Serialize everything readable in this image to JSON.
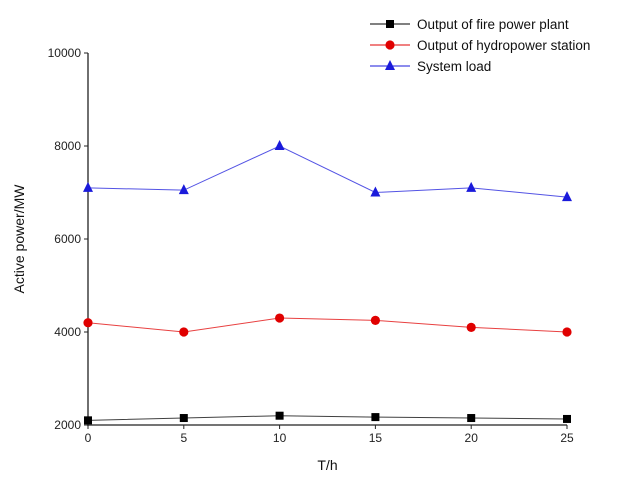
{
  "chart_data": {
    "type": "line",
    "title": "",
    "xlabel": "T/h",
    "ylabel": "Active power/MW",
    "x": [
      0,
      5,
      10,
      15,
      20,
      25
    ],
    "xlim": [
      0,
      25
    ],
    "ylim": [
      2000,
      10000
    ],
    "xticks": [
      0,
      5,
      10,
      15,
      20,
      25
    ],
    "yticks": [
      2000,
      4000,
      6000,
      8000,
      10000
    ],
    "grid": false,
    "legend_position": "top-right",
    "series": [
      {
        "name": "Output of fire power plant",
        "marker": "square",
        "color": "#000000",
        "values": [
          2100,
          2150,
          2200,
          2170,
          2150,
          2130
        ]
      },
      {
        "name": "Output of hydropower station",
        "marker": "circle",
        "color": "#e00000",
        "values": [
          4200,
          4000,
          4300,
          4250,
          4100,
          4000
        ]
      },
      {
        "name": "System load",
        "marker": "triangle",
        "color": "#1a1adb",
        "values": [
          7100,
          7050,
          8000,
          7000,
          7100,
          6900
        ]
      }
    ]
  }
}
